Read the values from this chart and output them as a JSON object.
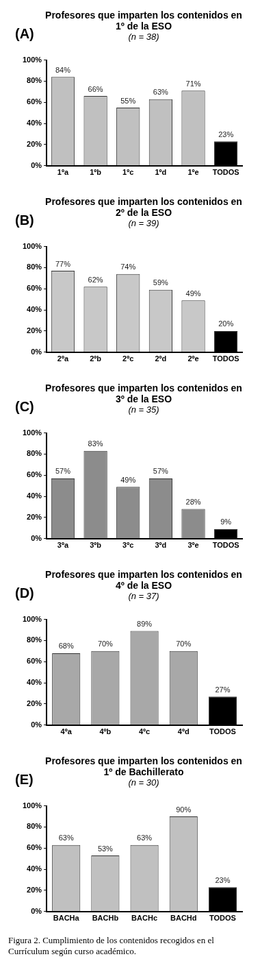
{
  "chart_data": [
    {
      "type": "bar",
      "title": "Profesores que imparten los contenidos en 1º de la ESO",
      "subtitle": "(n = 38)",
      "annotations": [
        "(A)"
      ],
      "categories": [
        "1ºa",
        "1ºb",
        "1ºc",
        "1ºd",
        "1ºe",
        "TODOS"
      ],
      "values": [
        84,
        66,
        55,
        63,
        71,
        23
      ],
      "value_labels": [
        "84%",
        "66%",
        "55%",
        "63%",
        "71%",
        "23%"
      ],
      "colors": [
        "#c0c0c0",
        "#c0c0c0",
        "#c0c0c0",
        "#c0c0c0",
        "#c0c0c0",
        "#000000"
      ],
      "ylim": [
        0,
        100
      ],
      "yticks": [
        {
          "value": 0,
          "label": "0%"
        },
        {
          "value": 20,
          "label": "20%"
        },
        {
          "value": 40,
          "label": "40%"
        },
        {
          "value": 60,
          "label": "60%"
        },
        {
          "value": 80,
          "label": "80%"
        },
        {
          "value": 100,
          "label": "100%"
        }
      ],
      "grid": false,
      "legend": false
    },
    {
      "type": "bar",
      "title": "Profesores que imparten los contenidos en 2º de la ESO",
      "subtitle": "(n = 39)",
      "annotations": [
        "(B)"
      ],
      "categories": [
        "2ºa",
        "2ºb",
        "2ºc",
        "2ºd",
        "2ºe",
        "TODOS"
      ],
      "values": [
        77,
        62,
        74,
        59,
        49,
        20
      ],
      "value_labels": [
        "77%",
        "62%",
        "74%",
        "59%",
        "49%",
        "20%"
      ],
      "colors": [
        "#c8c8c8",
        "#c8c8c8",
        "#c8c8c8",
        "#c8c8c8",
        "#c8c8c8",
        "#000000"
      ],
      "ylim": [
        0,
        100
      ],
      "yticks": [
        {
          "value": 0,
          "label": "0%"
        },
        {
          "value": 20,
          "label": "20%"
        },
        {
          "value": 40,
          "label": "40%"
        },
        {
          "value": 60,
          "label": "60%"
        },
        {
          "value": 80,
          "label": "80%"
        },
        {
          "value": 100,
          "label": "100%"
        }
      ],
      "grid": false,
      "legend": false
    },
    {
      "type": "bar",
      "title": "Profesores que imparten los contenidos en 3º de la ESO",
      "subtitle": "(n = 35)",
      "annotations": [
        "(C)"
      ],
      "categories": [
        "3ºa",
        "3ºb",
        "3ºc",
        "3ºd",
        "3ºe",
        "TODOS"
      ],
      "values": [
        57,
        83,
        49,
        57,
        28,
        9
      ],
      "value_labels": [
        "57%",
        "83%",
        "49%",
        "57%",
        "28%",
        "9%"
      ],
      "colors": [
        "#8c8c8c",
        "#8c8c8c",
        "#8c8c8c",
        "#8c8c8c",
        "#8c8c8c",
        "#000000"
      ],
      "ylim": [
        0,
        100
      ],
      "yticks": [
        {
          "value": 0,
          "label": "0%"
        },
        {
          "value": 20,
          "label": "20%"
        },
        {
          "value": 40,
          "label": "40%"
        },
        {
          "value": 60,
          "label": "60%"
        },
        {
          "value": 80,
          "label": "80%"
        },
        {
          "value": 100,
          "label": "100%"
        }
      ],
      "grid": false,
      "legend": false
    },
    {
      "type": "bar",
      "title": "Profesores que imparten los contenidos en 4º de la ESO",
      "subtitle": "(n = 37)",
      "annotations": [
        "(D)"
      ],
      "categories": [
        "4ºa",
        "4ºb",
        "4ºc",
        "4ºd",
        "TODOS"
      ],
      "values": [
        68,
        70,
        89,
        70,
        27
      ],
      "value_labels": [
        "68%",
        "70%",
        "89%",
        "70%",
        "27%"
      ],
      "colors": [
        "#a8a8a8",
        "#a8a8a8",
        "#a8a8a8",
        "#a8a8a8",
        "#000000"
      ],
      "ylim": [
        0,
        100
      ],
      "yticks": [
        {
          "value": 0,
          "label": "0%"
        },
        {
          "value": 20,
          "label": "20%"
        },
        {
          "value": 40,
          "label": "40%"
        },
        {
          "value": 60,
          "label": "60%"
        },
        {
          "value": 80,
          "label": "80%"
        },
        {
          "value": 100,
          "label": "100%"
        }
      ],
      "grid": false,
      "legend": false
    },
    {
      "type": "bar",
      "title": "Profesores que imparten los contenidos en 1º de Bachillerato",
      "subtitle": "(n = 30)",
      "annotations": [
        "(E)",
        "Figura 2. Cumplimiento de los contenidos recogidos en el Currículum según curso académico."
      ],
      "categories": [
        "BACHa",
        "BACHb",
        "BACHc",
        "BACHd",
        "TODOS"
      ],
      "values": [
        63,
        53,
        63,
        90,
        23
      ],
      "value_labels": [
        "63%",
        "53%",
        "63%",
        "90%",
        "23%"
      ],
      "colors": [
        "#c0c0c0",
        "#c0c0c0",
        "#c0c0c0",
        "#c0c0c0",
        "#000000"
      ],
      "ylim": [
        0,
        100
      ],
      "yticks": [
        {
          "value": 0,
          "label": "0%"
        },
        {
          "value": 20,
          "label": "20%"
        },
        {
          "value": 40,
          "label": "40%"
        },
        {
          "value": 60,
          "label": "60%"
        },
        {
          "value": 80,
          "label": "80%"
        },
        {
          "value": 100,
          "label": "100%"
        }
      ],
      "grid": false,
      "legend": false
    }
  ]
}
